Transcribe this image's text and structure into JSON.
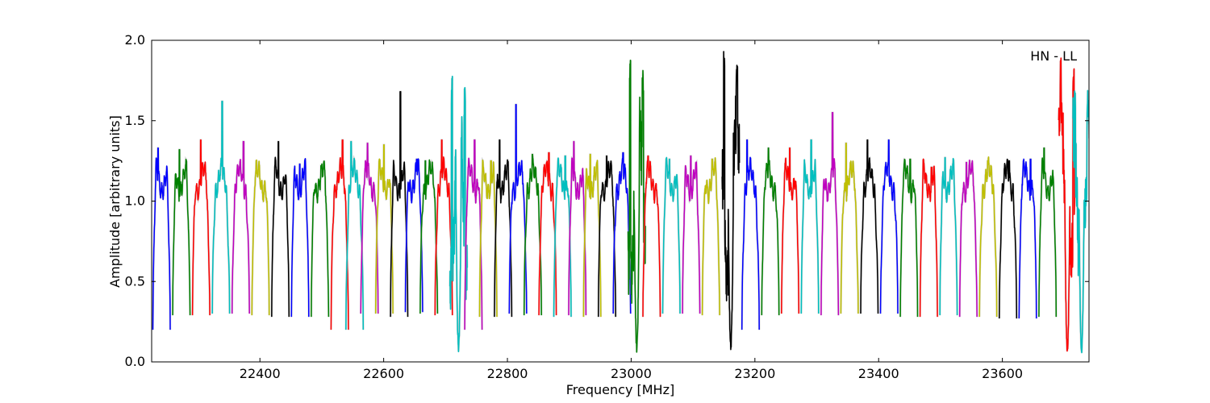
{
  "chart_data": {
    "type": "line",
    "title": "",
    "xlabel": "Frequency [MHz]",
    "ylabel": "Amplitude [arbitrary units]",
    "xlim": [
      22225,
      23740
    ],
    "ylim": [
      0.0,
      2.0
    ],
    "x_ticks": [
      22400,
      22600,
      22800,
      23000,
      23200,
      23400,
      23600
    ],
    "x_tick_labels": [
      "22400",
      "22600",
      "22800",
      "23000",
      "23200",
      "23400",
      "23600"
    ],
    "y_ticks": [
      0.0,
      0.5,
      1.0,
      1.5,
      2.0
    ],
    "y_tick_labels": [
      "0.0",
      "0.5",
      "1.0",
      "1.5",
      "2.0"
    ],
    "grid": false,
    "annotation": "HN - LL",
    "annotation_placement": "top-right",
    "color_cycle": [
      "#0000ff",
      "#008000",
      "#ff0000",
      "#00bfbf",
      "#bf00bf",
      "#bfbf00",
      "#000000"
    ],
    "shadow_color": "#b0b0b0",
    "band_width_mhz": 32,
    "band_starts": [
      22225,
      22257,
      22289,
      22321,
      22353,
      22385,
      22417,
      22449,
      22481,
      22513,
      22537,
      22561,
      22585,
      22609,
      22633,
      22657,
      22681,
      22705,
      22729,
      22753,
      22777,
      22801,
      22825,
      22849,
      22873,
      22897,
      22921,
      22945,
      22969,
      22993,
      23017,
      23049,
      23081,
      23113,
      23145,
      23177,
      23209,
      23241,
      23273,
      23305,
      23337,
      23369,
      23401,
      23433,
      23465,
      23497,
      23529,
      23561,
      23593,
      23625,
      23657,
      23689,
      23712
    ],
    "band_peaks": [
      1.33,
      1.32,
      1.38,
      1.62,
      1.37,
      1.17,
      1.37,
      1.23,
      1.22,
      1.38,
      1.37,
      1.36,
      1.35,
      1.68,
      1.26,
      1.25,
      1.38,
      1.8,
      1.38,
      1.25,
      1.38,
      1.6,
      1.29,
      1.3,
      1.28,
      1.37,
      1.29,
      1.28,
      1.3,
      1.95,
      1.28,
      1.26,
      1.28,
      1.26,
      1.97,
      1.38,
      1.33,
      1.33,
      1.38,
      1.55,
      1.36,
      1.38,
      1.38,
      1.26,
      1.21,
      1.27,
      1.24,
      1.25,
      1.25,
      1.26,
      1.33,
      1.95,
      1.8
    ],
    "band_mins": [
      0.2,
      0.29,
      0.29,
      0.3,
      0.3,
      0.29,
      0.28,
      0.28,
      0.28,
      0.2,
      0.2,
      0.3,
      0.3,
      0.28,
      0.31,
      0.3,
      0.29,
      0.1,
      0.2,
      0.28,
      0.28,
      0.3,
      0.29,
      0.29,
      0.28,
      0.29,
      0.28,
      0.28,
      0.3,
      0.1,
      0.28,
      0.3,
      0.3,
      0.29,
      0.1,
      0.2,
      0.29,
      0.3,
      0.3,
      0.29,
      0.3,
      0.3,
      0.3,
      0.28,
      0.28,
      0.29,
      0.28,
      0.28,
      0.27,
      0.27,
      0.28,
      0.08,
      0.08
    ],
    "band_deep": [
      false,
      false,
      false,
      false,
      false,
      false,
      false,
      false,
      false,
      false,
      false,
      false,
      false,
      false,
      false,
      false,
      false,
      true,
      false,
      false,
      false,
      false,
      false,
      false,
      false,
      false,
      false,
      false,
      false,
      true,
      false,
      false,
      false,
      false,
      true,
      false,
      false,
      false,
      false,
      false,
      false,
      false,
      false,
      false,
      false,
      false,
      false,
      false,
      false,
      false,
      false,
      true,
      true
    ]
  }
}
